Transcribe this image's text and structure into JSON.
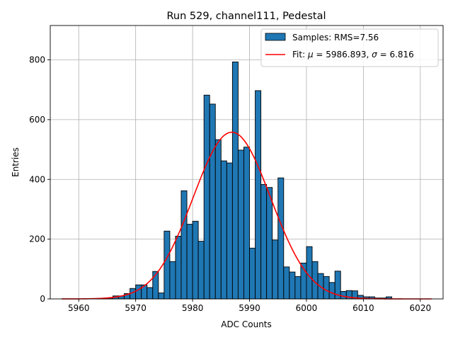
{
  "chart_data": {
    "type": "bar",
    "title": "Run 529, channel111, Pedestal",
    "xlabel": "ADC Counts",
    "ylabel": "Entries",
    "xlim": [
      5955,
      6024
    ],
    "ylim": [
      0,
      915
    ],
    "xticks": [
      5960,
      5970,
      5980,
      5990,
      6000,
      6010,
      6020
    ],
    "yticks": [
      0,
      200,
      400,
      600,
      800
    ],
    "grid": true,
    "legend_position": "top-right",
    "histogram": {
      "name": "Samples: RMS=7.56",
      "color": "#1f77b4",
      "edge_color": "#000000",
      "bin_width": 1,
      "bins": [
        {
          "x": 5963,
          "y": 1
        },
        {
          "x": 5964,
          "y": 2
        },
        {
          "x": 5965,
          "y": 3
        },
        {
          "x": 5966,
          "y": 10
        },
        {
          "x": 5967,
          "y": 10
        },
        {
          "x": 5968,
          "y": 18
        },
        {
          "x": 5969,
          "y": 35
        },
        {
          "x": 5970,
          "y": 47
        },
        {
          "x": 5971,
          "y": 47
        },
        {
          "x": 5972,
          "y": 38
        },
        {
          "x": 5973,
          "y": 92
        },
        {
          "x": 5974,
          "y": 20
        },
        {
          "x": 5975,
          "y": 227
        },
        {
          "x": 5976,
          "y": 125
        },
        {
          "x": 5977,
          "y": 210
        },
        {
          "x": 5978,
          "y": 362
        },
        {
          "x": 5979,
          "y": 250
        },
        {
          "x": 5980,
          "y": 260
        },
        {
          "x": 5981,
          "y": 193
        },
        {
          "x": 5982,
          "y": 682
        },
        {
          "x": 5983,
          "y": 652
        },
        {
          "x": 5984,
          "y": 533
        },
        {
          "x": 5985,
          "y": 462
        },
        {
          "x": 5986,
          "y": 455
        },
        {
          "x": 5987,
          "y": 793
        },
        {
          "x": 5988,
          "y": 498
        },
        {
          "x": 5989,
          "y": 508
        },
        {
          "x": 5990,
          "y": 170
        },
        {
          "x": 5991,
          "y": 697
        },
        {
          "x": 5992,
          "y": 383
        },
        {
          "x": 5993,
          "y": 373
        },
        {
          "x": 5994,
          "y": 197
        },
        {
          "x": 5995,
          "y": 405
        },
        {
          "x": 5996,
          "y": 107
        },
        {
          "x": 5997,
          "y": 90
        },
        {
          "x": 5998,
          "y": 75
        },
        {
          "x": 5999,
          "y": 120
        },
        {
          "x": 6000,
          "y": 175
        },
        {
          "x": 6001,
          "y": 125
        },
        {
          "x": 6002,
          "y": 85
        },
        {
          "x": 6003,
          "y": 75
        },
        {
          "x": 6004,
          "y": 55
        },
        {
          "x": 6005,
          "y": 93
        },
        {
          "x": 6006,
          "y": 25
        },
        {
          "x": 6007,
          "y": 28
        },
        {
          "x": 6008,
          "y": 27
        },
        {
          "x": 6009,
          "y": 12
        },
        {
          "x": 6010,
          "y": 7
        },
        {
          "x": 6011,
          "y": 7
        },
        {
          "x": 6012,
          "y": 3
        },
        {
          "x": 6013,
          "y": 3
        },
        {
          "x": 6014,
          "y": 7
        }
      ]
    },
    "fit": {
      "name": "Fit: $\\mu$ = 5986.893, $\\sigma$ = 6.816",
      "legend_prefix": "Fit: ",
      "legend_mu_symbol": "μ",
      "legend_mu_value": " = 5986.893, ",
      "legend_sigma_symbol": "σ",
      "legend_sigma_value": " = 6.816",
      "color": "#ff0000",
      "mu": 5986.893,
      "sigma": 6.816,
      "amplitude": 558,
      "x_range": [
        5957,
        6022
      ]
    }
  }
}
